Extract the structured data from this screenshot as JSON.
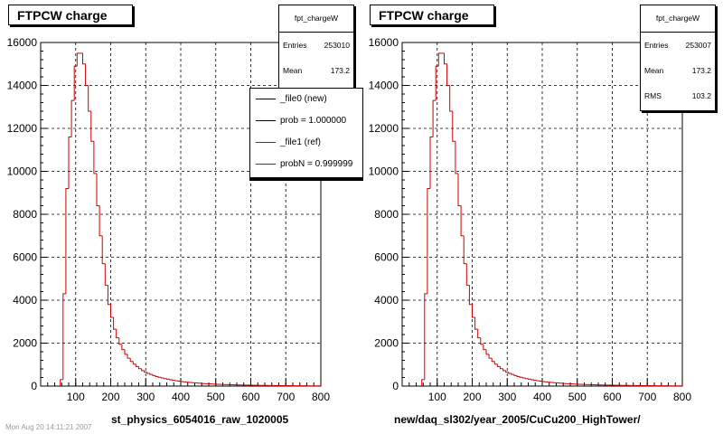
{
  "panels": [
    {
      "title": "FTPCW charge",
      "stats": {
        "name": "fpt_chargeW",
        "rows": [
          {
            "k": "Entries",
            "v": "253010"
          },
          {
            "k": "Mean",
            "v": "173.2"
          }
        ]
      },
      "legend": [
        {
          "label": "_file0 (new)",
          "color": "#000000"
        },
        {
          "label": "prob = 1.000000",
          "color": "#000000"
        },
        {
          "label": "_file1 (ref)",
          "color": "#cc0000"
        },
        {
          "label": "probN = 0.999999",
          "color": "#cc0000"
        }
      ],
      "xlabel": "st_physics_6054016_raw_1020005"
    },
    {
      "title": "FTPCW charge",
      "stats": {
        "name": "fpt_chargeW",
        "rows": [
          {
            "k": "Entries",
            "v": "253007"
          },
          {
            "k": "Mean",
            "v": "173.2"
          },
          {
            "k": "RMS",
            "v": "103.2"
          }
        ]
      },
      "xlabel": "new/daq_sl302/year_2005/CuCu200_HighTower/"
    }
  ],
  "footnote": "Mon Aug 20 14:11:21 2007",
  "chart_data": [
    {
      "type": "bar",
      "title": "FTPCW charge",
      "xlabel": "st_physics_6054016_raw_1020005",
      "ylabel": "",
      "xlim": [
        0,
        800
      ],
      "ylim": [
        0,
        16000
      ],
      "grid": true,
      "legend_position": "top-right",
      "color": "#cc0000",
      "xticks": [
        "100",
        "200",
        "300",
        "400",
        "500",
        "600",
        "700",
        "800"
      ],
      "yticks": [
        "0",
        "2000",
        "4000",
        "6000",
        "8000",
        "10000",
        "12000",
        "14000",
        "16000"
      ],
      "bin_width": 8,
      "x": [
        56,
        64,
        72,
        80,
        88,
        96,
        104,
        112,
        120,
        128,
        136,
        144,
        152,
        160,
        168,
        176,
        184,
        192,
        200,
        208,
        216,
        224,
        232,
        240,
        248,
        256,
        264,
        272,
        280,
        288,
        296,
        304,
        312,
        320,
        328,
        336,
        344,
        352,
        360,
        368,
        376,
        384,
        392,
        400,
        408,
        416,
        424,
        432,
        440,
        448,
        456,
        464,
        472,
        480,
        488,
        496,
        504,
        512,
        520,
        528,
        536,
        544,
        552,
        560,
        568,
        576,
        584,
        592,
        600,
        608,
        616,
        624,
        632,
        640,
        648,
        656,
        664,
        672,
        680,
        688,
        696,
        704,
        712,
        720,
        728,
        736,
        744,
        752,
        760,
        768,
        776,
        784,
        792
      ],
      "values": [
        300,
        4300,
        9200,
        11600,
        13300,
        14900,
        15500,
        15500,
        15000,
        14000,
        12800,
        11400,
        9900,
        8400,
        7000,
        5700,
        4700,
        3800,
        3200,
        2650,
        2250,
        1950,
        1700,
        1480,
        1300,
        1150,
        1020,
        910,
        810,
        720,
        650,
        590,
        540,
        490,
        450,
        410,
        380,
        350,
        320,
        295,
        270,
        250,
        230,
        212,
        196,
        181,
        168,
        156,
        145,
        135,
        126,
        118,
        110,
        103,
        96,
        90,
        84,
        79,
        74,
        69,
        65,
        61,
        57,
        54,
        51,
        48,
        45,
        42,
        40,
        38,
        36,
        34,
        32,
        30,
        28,
        27,
        25,
        24,
        23,
        22,
        21,
        20,
        19,
        18,
        17,
        16,
        15,
        14,
        13,
        12,
        11,
        10,
        9
      ]
    },
    {
      "type": "bar",
      "title": "FTPCW charge",
      "xlabel": "new/daq_sl302/year_2005/CuCu200_HighTower/",
      "ylabel": "",
      "xlim": [
        0,
        800
      ],
      "ylim": [
        0,
        16000
      ],
      "grid": true,
      "color": "#cc0000",
      "xticks": [
        "100",
        "200",
        "300",
        "400",
        "500",
        "600",
        "700",
        "800"
      ],
      "yticks": [
        "0",
        "2000",
        "4000",
        "6000",
        "8000",
        "10000",
        "12000",
        "14000",
        "16000"
      ],
      "bin_width": 8,
      "x": [
        56,
        64,
        72,
        80,
        88,
        96,
        104,
        112,
        120,
        128,
        136,
        144,
        152,
        160,
        168,
        176,
        184,
        192,
        200,
        208,
        216,
        224,
        232,
        240,
        248,
        256,
        264,
        272,
        280,
        288,
        296,
        304,
        312,
        320,
        328,
        336,
        344,
        352,
        360,
        368,
        376,
        384,
        392,
        400,
        408,
        416,
        424,
        432,
        440,
        448,
        456,
        464,
        472,
        480,
        488,
        496,
        504,
        512,
        520,
        528,
        536,
        544,
        552,
        560,
        568,
        576,
        584,
        592,
        600,
        608,
        616,
        624,
        632,
        640,
        648,
        656,
        664,
        672,
        680,
        688,
        696,
        704,
        712,
        720,
        728,
        736,
        744,
        752,
        760,
        768,
        776,
        784,
        792
      ],
      "values": [
        300,
        4300,
        9200,
        11600,
        13300,
        14900,
        15500,
        15500,
        15000,
        14000,
        12800,
        11400,
        9900,
        8400,
        7000,
        5700,
        4700,
        3800,
        3200,
        2650,
        2250,
        1950,
        1700,
        1480,
        1300,
        1150,
        1020,
        910,
        810,
        720,
        650,
        590,
        540,
        490,
        450,
        410,
        380,
        350,
        320,
        295,
        270,
        250,
        230,
        212,
        196,
        181,
        168,
        156,
        145,
        135,
        126,
        118,
        110,
        103,
        96,
        90,
        84,
        79,
        74,
        69,
        65,
        61,
        57,
        54,
        51,
        48,
        45,
        42,
        40,
        38,
        36,
        34,
        32,
        30,
        28,
        27,
        25,
        24,
        23,
        22,
        21,
        20,
        19,
        18,
        17,
        16,
        15,
        14,
        13,
        12,
        11,
        10,
        9
      ]
    }
  ]
}
